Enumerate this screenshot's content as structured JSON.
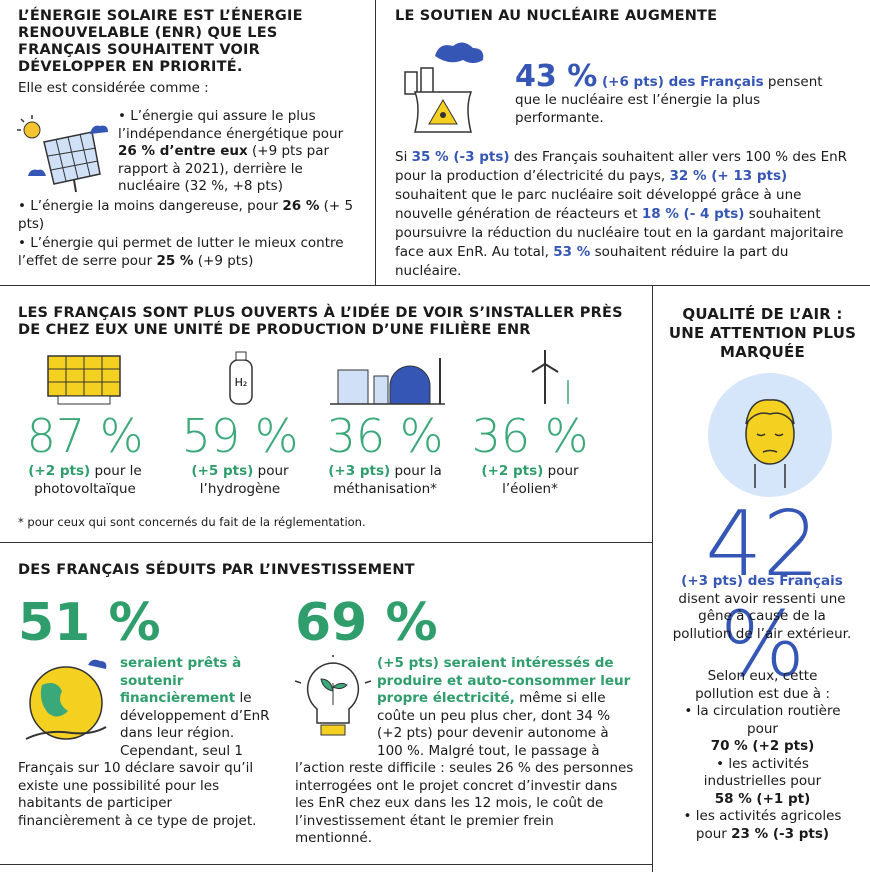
{
  "solar": {
    "title": "L’ÉNERGIE SOLAIRE EST L’ÉNERGIE RENOUVELABLE (ENR) QUE LES FRANÇAIS SOUHAITENT VOIR DÉVELOPPER EN PRIORITÉ.",
    "intro": "Elle est considérée comme :",
    "items": [
      [
        "• L’énergie qui assure le plus l’indépendance énergétique pour ",
        "26 % d’entre eux",
        " (+9 pts par rapport à 2021), derrière le nucléaire (32 %, +8 pts)"
      ],
      [
        "• L’énergie la moins dangereuse, pour ",
        "26 %",
        " (+ 5 pts)"
      ],
      [
        "• L’énergie qui permet de lutter le mieux contre l’effet de serre pour ",
        "25 %",
        " (+9 pts)"
      ]
    ]
  },
  "nuclear": {
    "title": "LE SOUTIEN AU NUCLÉAIRE AUGMENTE",
    "lead": [
      "43 %",
      " (+6 pts) des Français",
      " pensent que le nucléaire est l’énergie la plus performante."
    ],
    "body": [
      "Si ",
      "35 % (-3 pts)",
      " des Français souhaitent aller vers 100 % des EnR pour la production d’électricité du pays, ",
      "32 % (+ 13 pts)",
      " souhaitent que le parc nucléaire soit développé grâce à une nouvelle génération de réacteurs et ",
      "18 % (- 4 pts)",
      " souhaitent poursuivre la réduction du nucléaire tout en la gardant majoritaire face aux EnR. Au total, ",
      "53 %",
      " souhaitent réduire la part du nucléaire."
    ]
  },
  "openness": {
    "title": "LES FRANÇAIS SONT PLUS OUVERTS À L’IDÉE DE VOIR S’INSTALLER PRÈS DE CHEZ EUX UNE UNITÉ DE PRODUCTION D’UNE FILIÈRE ENR",
    "stats": [
      {
        "value": "87 %",
        "change": "(+2 pts)",
        "label": "pour le photovoltaïque"
      },
      {
        "value": "59 %",
        "change": "(+5 pts)",
        "label": "pour l’hydrogène"
      },
      {
        "value": "36 %",
        "change": "(+3 pts)",
        "label": "pour la méthanisation*"
      },
      {
        "value": "36 %",
        "change": "(+2 pts)",
        "label": "pour l’éolien*"
      }
    ],
    "footnote": "* pour ceux qui sont concernés du fait de la réglementation."
  },
  "investment": {
    "title": "DES FRANÇAIS SÉDUITS PAR L’INVESTISSEMENT",
    "left": {
      "value": "51 %",
      "highlight": "seraient prêts à soutenir financièrement",
      "text": " le développement d’EnR dans leur région. Cependant, seul 1 Français sur 10 déclare savoir qu’il existe une possibilité pour les habitants de participer financièrement à ce type de projet."
    },
    "right": {
      "value": "69 %",
      "highlight": "(+5 pts) seraient intéressés de produire et auto-consommer leur propre électricité,",
      "text": " même si elle coûte un peu plus cher, dont 34 % (+2 pts) pour devenir autonome à 100 %. Malgré tout, le passage à l’action reste difficile : seules 26 % des personnes interrogées ont le projet concret d’investir dans les EnR chez eux dans les 12 mois, le coût de l’investissement étant le premier frein mentionné."
    }
  },
  "air": {
    "title": "QUALITÉ DE L’AIR : UNE ATTENTION PLUS MARQUÉE",
    "value": "42 %",
    "change": "(+3 pts) des Français",
    "text": "disent avoir ressenti une gêne à cause de la pollution de l’air extérieur.",
    "intro": "Selon eux, cette pollution est due à :",
    "items": [
      [
        "• la circulation routière pour",
        "70 % (+2 pts)"
      ],
      [
        "• les activités industrielles pour",
        "58 % (+1 pt)"
      ],
      [
        "• les activités agricoles pour",
        "23 % (-3 pts)"
      ]
    ]
  }
}
